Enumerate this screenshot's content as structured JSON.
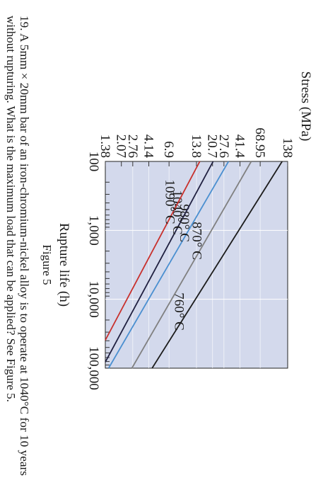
{
  "question": {
    "line1": "19. A 5mm × 20mm bar of an iron-chromium-nickel alloy is to operate at 1040°C for 10 years",
    "line2": "without rupturing. What is the maximum load that can be applied? See Figure 5."
  },
  "figure_caption": "Figure 5",
  "chart_data": {
    "type": "line",
    "title": "",
    "xlabel": "Rupture life (h)",
    "ylabel": "Stress (MPa)",
    "x_scale": "log",
    "y_scale": "log",
    "xlim": [
      100,
      100000
    ],
    "ylim": [
      1.38,
      138
    ],
    "x_ticks": [
      "100",
      "1,000",
      "10,000",
      "100,000"
    ],
    "y_ticks": [
      "1.38",
      "2.07",
      "2.76",
      "4.14",
      "6.9",
      "13.8",
      "20.7",
      "27.6",
      "41.4",
      "68.95",
      "138"
    ],
    "grid": true,
    "background_color": "#d3d9ec",
    "series": [
      {
        "name": "760° C",
        "color": "#1c1c1c",
        "x": [
          100,
          100000
        ],
        "y": [
          120,
          4.5
        ]
      },
      {
        "name": "870° C",
        "color": "#808080",
        "x": [
          100,
          100000
        ],
        "y": [
          55,
          2.7
        ]
      },
      {
        "name": "980° C",
        "color": "#4a8fd0",
        "x": [
          100,
          100000
        ],
        "y": [
          31,
          1.5
        ]
      },
      {
        "name": "1040° C",
        "color": "#202040",
        "x": [
          100,
          100000
        ],
        "y": [
          21,
          1.27
        ]
      },
      {
        "name": "1090° C",
        "color": "#c8302c",
        "x": [
          100,
          100000
        ],
        "y": [
          15,
          0.95
        ]
      }
    ]
  }
}
